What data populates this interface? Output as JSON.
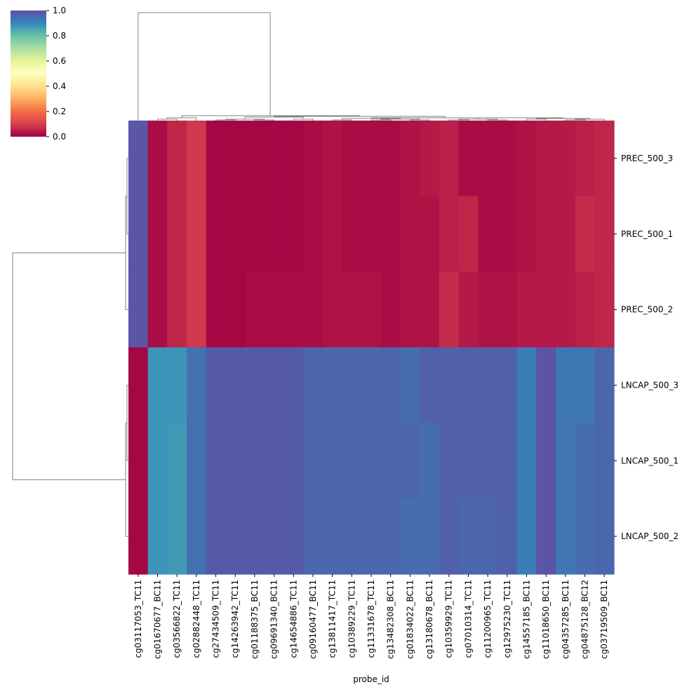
{
  "chart_data": {
    "type": "heatmap",
    "xlabel": "probe_id",
    "ylabel": "",
    "colorbar": {
      "min": 0.0,
      "max": 1.0,
      "ticks": [
        "0.0",
        "0.2",
        "0.4",
        "0.6",
        "0.8",
        "1.0"
      ],
      "colormap": "Spectral"
    },
    "columns": [
      "cg03117053_TC11",
      "cg01670677_BC11",
      "cg03566822_TC11",
      "cg02882448_TC11",
      "cg27434509_TC11",
      "cg14263942_TC11",
      "cg01188375_BC11",
      "cg09691340_BC11",
      "cg14654886_TC11",
      "cg09160477_BC11",
      "cg13811417_TC11",
      "cg10389229_TC11",
      "cg11331678_TC11",
      "cg13482308_BC11",
      "cg01834022_BC11",
      "cg13180678_BC11",
      "cg10359929_TC11",
      "cg07010314_TC11",
      "cg11200965_TC11",
      "cg12975230_TC11",
      "cg14557185_BC11",
      "cg11018650_BC11",
      "cg04357285_BC11",
      "cg04875128_BC12",
      "cg03719509_BC11"
    ],
    "rows": [
      "PREC_500_3",
      "PREC_500_1",
      "PREC_500_2",
      "LNCAP_500_3",
      "LNCAP_500_1",
      "LNCAP_500_2"
    ],
    "values": [
      [
        0.99,
        0.02,
        0.06,
        0.09,
        0.01,
        0.01,
        0.01,
        0.01,
        0.01,
        0.02,
        0.03,
        0.02,
        0.02,
        0.02,
        0.03,
        0.04,
        0.05,
        0.02,
        0.02,
        0.02,
        0.03,
        0.04,
        0.04,
        0.05,
        0.06
      ],
      [
        0.99,
        0.02,
        0.06,
        0.09,
        0.01,
        0.01,
        0.01,
        0.01,
        0.01,
        0.02,
        0.03,
        0.02,
        0.02,
        0.02,
        0.03,
        0.03,
        0.05,
        0.06,
        0.02,
        0.02,
        0.03,
        0.04,
        0.04,
        0.07,
        0.06
      ],
      [
        0.99,
        0.02,
        0.06,
        0.09,
        0.01,
        0.01,
        0.02,
        0.02,
        0.02,
        0.02,
        0.03,
        0.03,
        0.03,
        0.02,
        0.03,
        0.03,
        0.07,
        0.04,
        0.03,
        0.03,
        0.04,
        0.04,
        0.04,
        0.05,
        0.06
      ],
      [
        0.01,
        0.88,
        0.88,
        0.94,
        0.98,
        0.98,
        0.98,
        0.98,
        0.98,
        0.96,
        0.96,
        0.96,
        0.96,
        0.96,
        0.95,
        0.97,
        0.97,
        0.97,
        0.97,
        0.97,
        0.92,
        0.99,
        0.93,
        0.93,
        0.96
      ],
      [
        0.01,
        0.88,
        0.87,
        0.94,
        0.98,
        0.98,
        0.98,
        0.98,
        0.98,
        0.96,
        0.96,
        0.96,
        0.96,
        0.96,
        0.96,
        0.95,
        0.97,
        0.97,
        0.97,
        0.97,
        0.92,
        0.99,
        0.93,
        0.95,
        0.96
      ],
      [
        0.01,
        0.88,
        0.87,
        0.94,
        0.98,
        0.98,
        0.98,
        0.98,
        0.98,
        0.96,
        0.96,
        0.96,
        0.96,
        0.96,
        0.95,
        0.95,
        0.97,
        0.96,
        0.96,
        0.97,
        0.92,
        0.99,
        0.93,
        0.95,
        0.96
      ]
    ]
  }
}
